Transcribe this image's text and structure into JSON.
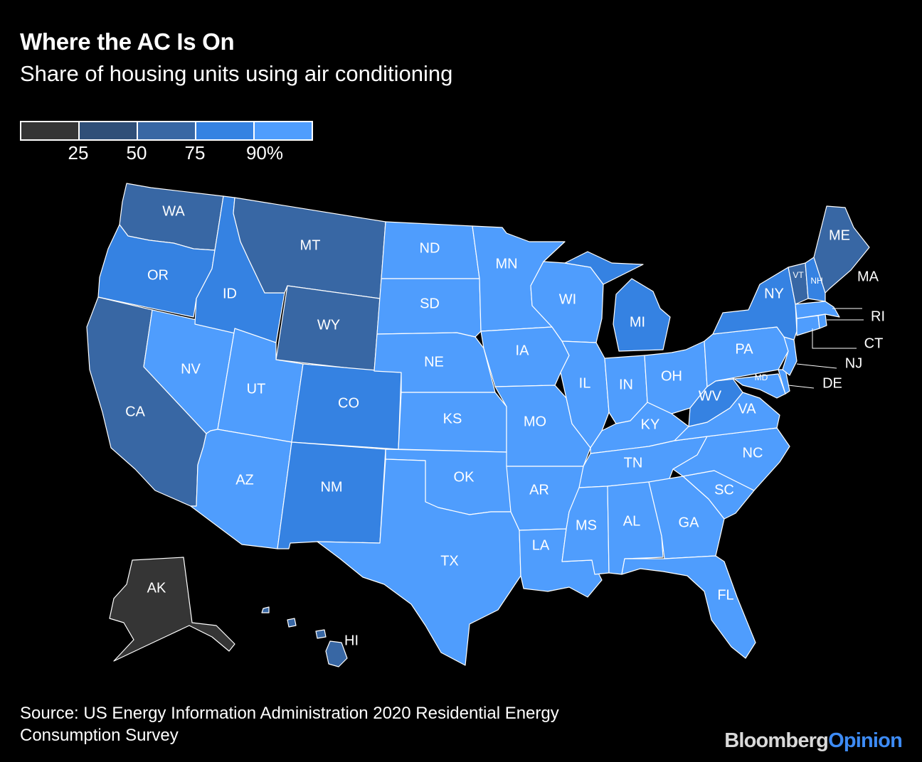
{
  "header": {
    "title": "Where the AC Is On",
    "subtitle": "Share of housing units using air conditioning"
  },
  "legend": {
    "bins": [
      {
        "color": "#353535"
      },
      {
        "color": "#2f4f78"
      },
      {
        "color": "#3867a4"
      },
      {
        "color": "#3582e2"
      },
      {
        "color": "#4f9dfd"
      }
    ],
    "ticks": [
      "25",
      "50",
      "75",
      "90%"
    ]
  },
  "colors": {
    "bin1": "#353535",
    "bin2": "#2f4f78",
    "bin3": "#3867a4",
    "bin4": "#3582e2",
    "bin5": "#4f9dfd"
  },
  "states": {
    "WA": "WA",
    "OR": "OR",
    "CA": "CA",
    "NV": "NV",
    "ID": "ID",
    "MT": "MT",
    "WY": "WY",
    "UT": "UT",
    "CO": "CO",
    "AZ": "AZ",
    "NM": "NM",
    "ND": "ND",
    "SD": "SD",
    "NE": "NE",
    "KS": "KS",
    "OK": "OK",
    "TX": "TX",
    "MN": "MN",
    "IA": "IA",
    "MO": "MO",
    "AR": "AR",
    "LA": "LA",
    "WI": "WI",
    "IL": "IL",
    "MI": "MI",
    "IN": "IN",
    "OH": "OH",
    "KY": "KY",
    "TN": "TN",
    "MS": "MS",
    "AL": "AL",
    "GA": "GA",
    "FL": "FL",
    "SC": "SC",
    "NC": "NC",
    "VA": "VA",
    "WV": "WV",
    "MD": "MD",
    "DE": "DE",
    "NJ": "NJ",
    "PA": "PA",
    "NY": "NY",
    "CT": "CT",
    "RI": "RI",
    "MA": "MA",
    "VT": "VT",
    "NH": "NH",
    "ME": "ME",
    "AK": "AK",
    "HI": "HI"
  },
  "footer": {
    "source": "Source: US Energy Information Administration 2020 Residential Energy Consumption Survey",
    "brand_part1": "Bloomberg",
    "brand_part2": "Opinion"
  }
}
